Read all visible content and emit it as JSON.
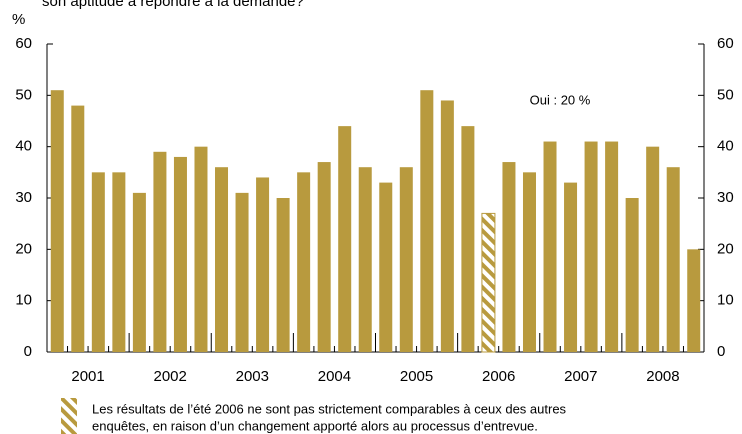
{
  "chart_data": {
    "type": "bar",
    "subtitle": "son aptitude à répondre à la demande?",
    "y_label": "%",
    "annotation": "Oui : 20 %",
    "note": [
      "Les résultats de l’été 2006 ne sont pas strictement comparables à ceux des autres",
      "enquêtes, en raison d’un changement apporté alors au processus d’entrevue."
    ],
    "year_labels": [
      "2001",
      "2002",
      "2003",
      "2004",
      "2005",
      "2006",
      "2007",
      "2008"
    ],
    "values": [
      51,
      48,
      35,
      35,
      31,
      39,
      38,
      40,
      36,
      31,
      34,
      30,
      35,
      37,
      44,
      36,
      33,
      36,
      51,
      49,
      44,
      27,
      37,
      35,
      41,
      33,
      41,
      41,
      30,
      40,
      36,
      20
    ],
    "hatched_index": 21,
    "color": "#b89a3e",
    "ylim": [
      0,
      60
    ],
    "yticks": [
      0,
      10,
      20,
      30,
      40,
      50,
      60
    ],
    "y2lim": [
      0,
      60
    ],
    "y2ticks": [
      0,
      10,
      20,
      30,
      40,
      50,
      60
    ]
  }
}
